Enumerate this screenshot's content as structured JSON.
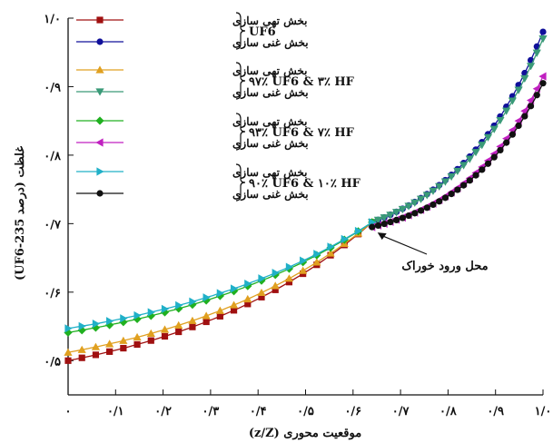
{
  "chart_data": {
    "type": "line",
    "xlabel": "موقعیت محوری (z/Z)",
    "ylabel": "غلظت (درصد UF6-235)",
    "xlim": [
      0,
      1.0
    ],
    "ylim": [
      0.45,
      1.0
    ],
    "x_ticks": [
      {
        "value": 0.0,
        "label": "۰"
      },
      {
        "value": 0.1,
        "label": "۰/۱"
      },
      {
        "value": 0.2,
        "label": "۰/۲"
      },
      {
        "value": 0.3,
        "label": "۰/۳"
      },
      {
        "value": 0.4,
        "label": "۰/۴"
      },
      {
        "value": 0.5,
        "label": "۰/۵"
      },
      {
        "value": 0.6,
        "label": "۰/۶"
      },
      {
        "value": 0.7,
        "label": "۰/۷"
      },
      {
        "value": 0.8,
        "label": "۰/۸"
      },
      {
        "value": 0.9,
        "label": "۰/۹"
      },
      {
        "value": 1.0,
        "label": "۱/۰"
      }
    ],
    "y_ticks": [
      {
        "value": 0.5,
        "label": "۰/۵"
      },
      {
        "value": 0.6,
        "label": "۰/۶"
      },
      {
        "value": 0.7,
        "label": "۰/۷"
      },
      {
        "value": 0.8,
        "label": "۰/۸"
      },
      {
        "value": 0.9,
        "label": "۰/۹"
      },
      {
        "value": 1.0,
        "label": "۱/۰"
      }
    ],
    "legend_position": "top-left",
    "groups": [
      {
        "label": "UF6",
        "series": [
          0,
          1
        ]
      },
      {
        "label": "۹۷٪ UF6 & ۳٪ HF",
        "series": [
          2,
          3
        ]
      },
      {
        "label": "۹۳٪ UF6 & ۷٪ HF",
        "series": [
          4,
          5
        ]
      },
      {
        "label": "۹۰٪ UF6 & ۱۰٪ HF",
        "series": [
          6,
          7
        ]
      }
    ],
    "annotation": {
      "text": "محل ورود خوراک",
      "x": 0.64,
      "y": 0.695
    },
    "series": [
      {
        "name": "بخش تهی سازی",
        "color": "#a01010",
        "marker": "square",
        "section": "stripping",
        "x_range": [
          0,
          0.64
        ],
        "start_y": 0.5,
        "end_y": 0.702,
        "k": 1.5,
        "n_markers": 22
      },
      {
        "name": "بخش غنی سازی",
        "color": "#10109a",
        "marker": "circle",
        "section": "enriching",
        "x_range": [
          0.64,
          1.0
        ],
        "start_y": 0.702,
        "end_y": 0.98,
        "k": 1.9,
        "n_markers": 28
      },
      {
        "name": "بخش تهی سازی",
        "color": "#e0a020",
        "marker": "triangle-up",
        "section": "stripping",
        "x_range": [
          0,
          0.64
        ],
        "start_y": 0.512,
        "end_y": 0.702,
        "k": 1.5,
        "n_markers": 22
      },
      {
        "name": "بخش غنی سازی",
        "color": "#3a9a78",
        "marker": "triangle-down",
        "section": "enriching",
        "x_range": [
          0.64,
          1.0
        ],
        "start_y": 0.702,
        "end_y": 0.97,
        "k": 1.9,
        "n_markers": 28
      },
      {
        "name": "بخش تهی سازی",
        "color": "#20b020",
        "marker": "diamond",
        "section": "stripping",
        "x_range": [
          0,
          0.64
        ],
        "start_y": 0.541,
        "end_y": 0.702,
        "k": 1.4,
        "n_markers": 22
      },
      {
        "name": "بخش غنی سازی",
        "color": "#c020c0",
        "marker": "triangle-left",
        "section": "enriching",
        "x_range": [
          0.64,
          1.0
        ],
        "start_y": 0.695,
        "end_y": 0.915,
        "k": 2.1,
        "n_markers": 28
      },
      {
        "name": "بخش تهی سازی",
        "color": "#20b0c8",
        "marker": "triangle-right",
        "section": "stripping",
        "x_range": [
          0,
          0.64
        ],
        "start_y": 0.547,
        "end_y": 0.702,
        "k": 1.4,
        "n_markers": 22
      },
      {
        "name": "بخش غنی سازی",
        "color": "#111111",
        "marker": "circle",
        "section": "enriching",
        "x_range": [
          0.64,
          1.0
        ],
        "start_y": 0.695,
        "end_y": 0.905,
        "k": 2.1,
        "n_markers": 28
      }
    ]
  }
}
